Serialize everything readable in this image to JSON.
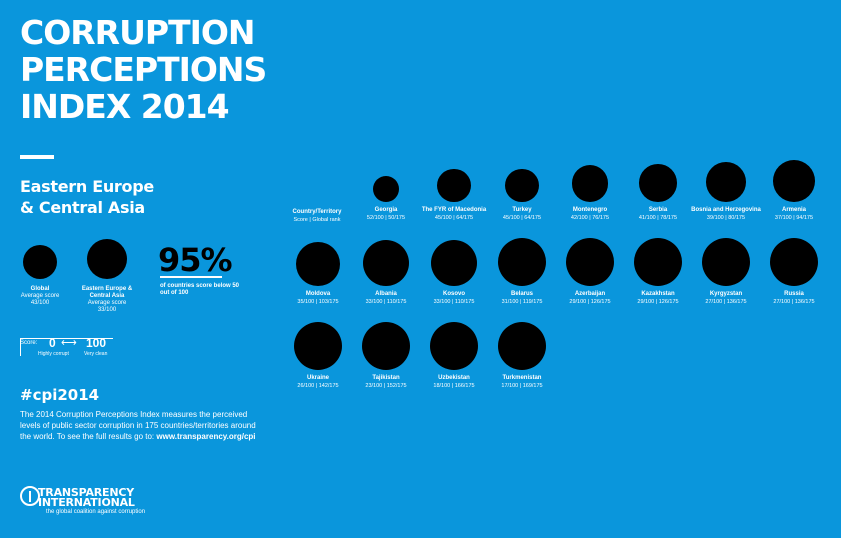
{
  "title": [
    "CORRUPTION",
    "PERCEPTIONS",
    "INDEX 2014"
  ],
  "region": [
    "Eastern Europe",
    "& Central Asia"
  ],
  "global": {
    "name": "Global",
    "score_label": "Average score",
    "score": "43/100",
    "score_value": 43
  },
  "regional": {
    "name": "Eastern Europe & Central Asia",
    "score_label": "Average score",
    "score": "33/100",
    "score_value": 33
  },
  "percent": {
    "value": "95%",
    "caption": "of countries score below 50 out of 100"
  },
  "scale": {
    "label": "Score:",
    "low": "0",
    "arrow": "⟷",
    "high": "100",
    "low_caption": "Highly corrupt",
    "high_caption": "Very clean"
  },
  "hashtag": "#cpi2014",
  "description": "The 2014 Corruption Perceptions Index measures the perceived levels of public sector corruption in 175 countries/territories around the world. To see the full results go to:",
  "url": "www.transparency.org/cpi",
  "logo": {
    "line1": "TRANSPARENCY",
    "line2": "INTERNATIONAL",
    "tagline": "the global coalition against corruption"
  },
  "column_header": {
    "title": "Country/Territory",
    "subtitle": "Score | Global rank"
  },
  "colors": {
    "background": "#0a96dc",
    "dot": "#000000",
    "text": "#ffffff"
  },
  "chart_data": {
    "type": "scatter",
    "title": "",
    "score_max": 100,
    "total_countries": 175,
    "countries": [
      {
        "name": "Georgia",
        "score": 52,
        "rank": 50,
        "label": "52/100 | 50/175"
      },
      {
        "name": "The FYR of Macedonia",
        "score": 45,
        "rank": 64,
        "label": "45/100 | 64/175"
      },
      {
        "name": "Turkey",
        "score": 45,
        "rank": 64,
        "label": "45/100 | 64/175"
      },
      {
        "name": "Montenegro",
        "score": 42,
        "rank": 76,
        "label": "42/100 | 76/175"
      },
      {
        "name": "Serbia",
        "score": 41,
        "rank": 78,
        "label": "41/100 | 78/175"
      },
      {
        "name": "Bosnia and Herzegovina",
        "score": 39,
        "rank": 80,
        "label": "39/100 | 80/175"
      },
      {
        "name": "Armenia",
        "score": 37,
        "rank": 94,
        "label": "37/100 | 94/175"
      },
      {
        "name": "Moldova",
        "score": 35,
        "rank": 103,
        "label": "35/100 | 103/175"
      },
      {
        "name": "Albania",
        "score": 33,
        "rank": 110,
        "label": "33/100 | 110/175"
      },
      {
        "name": "Kosovo",
        "score": 33,
        "rank": 110,
        "label": "33/100 | 110/175"
      },
      {
        "name": "Belarus",
        "score": 31,
        "rank": 119,
        "label": "31/100 | 119/175"
      },
      {
        "name": "Azerbaijan",
        "score": 29,
        "rank": 126,
        "label": "29/100 | 126/175"
      },
      {
        "name": "Kazakhstan",
        "score": 29,
        "rank": 126,
        "label": "29/100 | 126/175"
      },
      {
        "name": "Kyrgyzstan",
        "score": 27,
        "rank": 136,
        "label": "27/100 | 136/175"
      },
      {
        "name": "Russia",
        "score": 27,
        "rank": 136,
        "label": "27/100 | 136/175"
      },
      {
        "name": "Ukraine",
        "score": 26,
        "rank": 142,
        "label": "26/100 | 142/175"
      },
      {
        "name": "Tajikistan",
        "score": 23,
        "rank": 152,
        "label": "23/100 | 152/175"
      },
      {
        "name": "Uzbekistan",
        "score": 18,
        "rank": 166,
        "label": "18/100 | 166/175"
      },
      {
        "name": "Turkmenistan",
        "score": 17,
        "rank": 169,
        "label": "17/100 | 169/175"
      }
    ]
  }
}
